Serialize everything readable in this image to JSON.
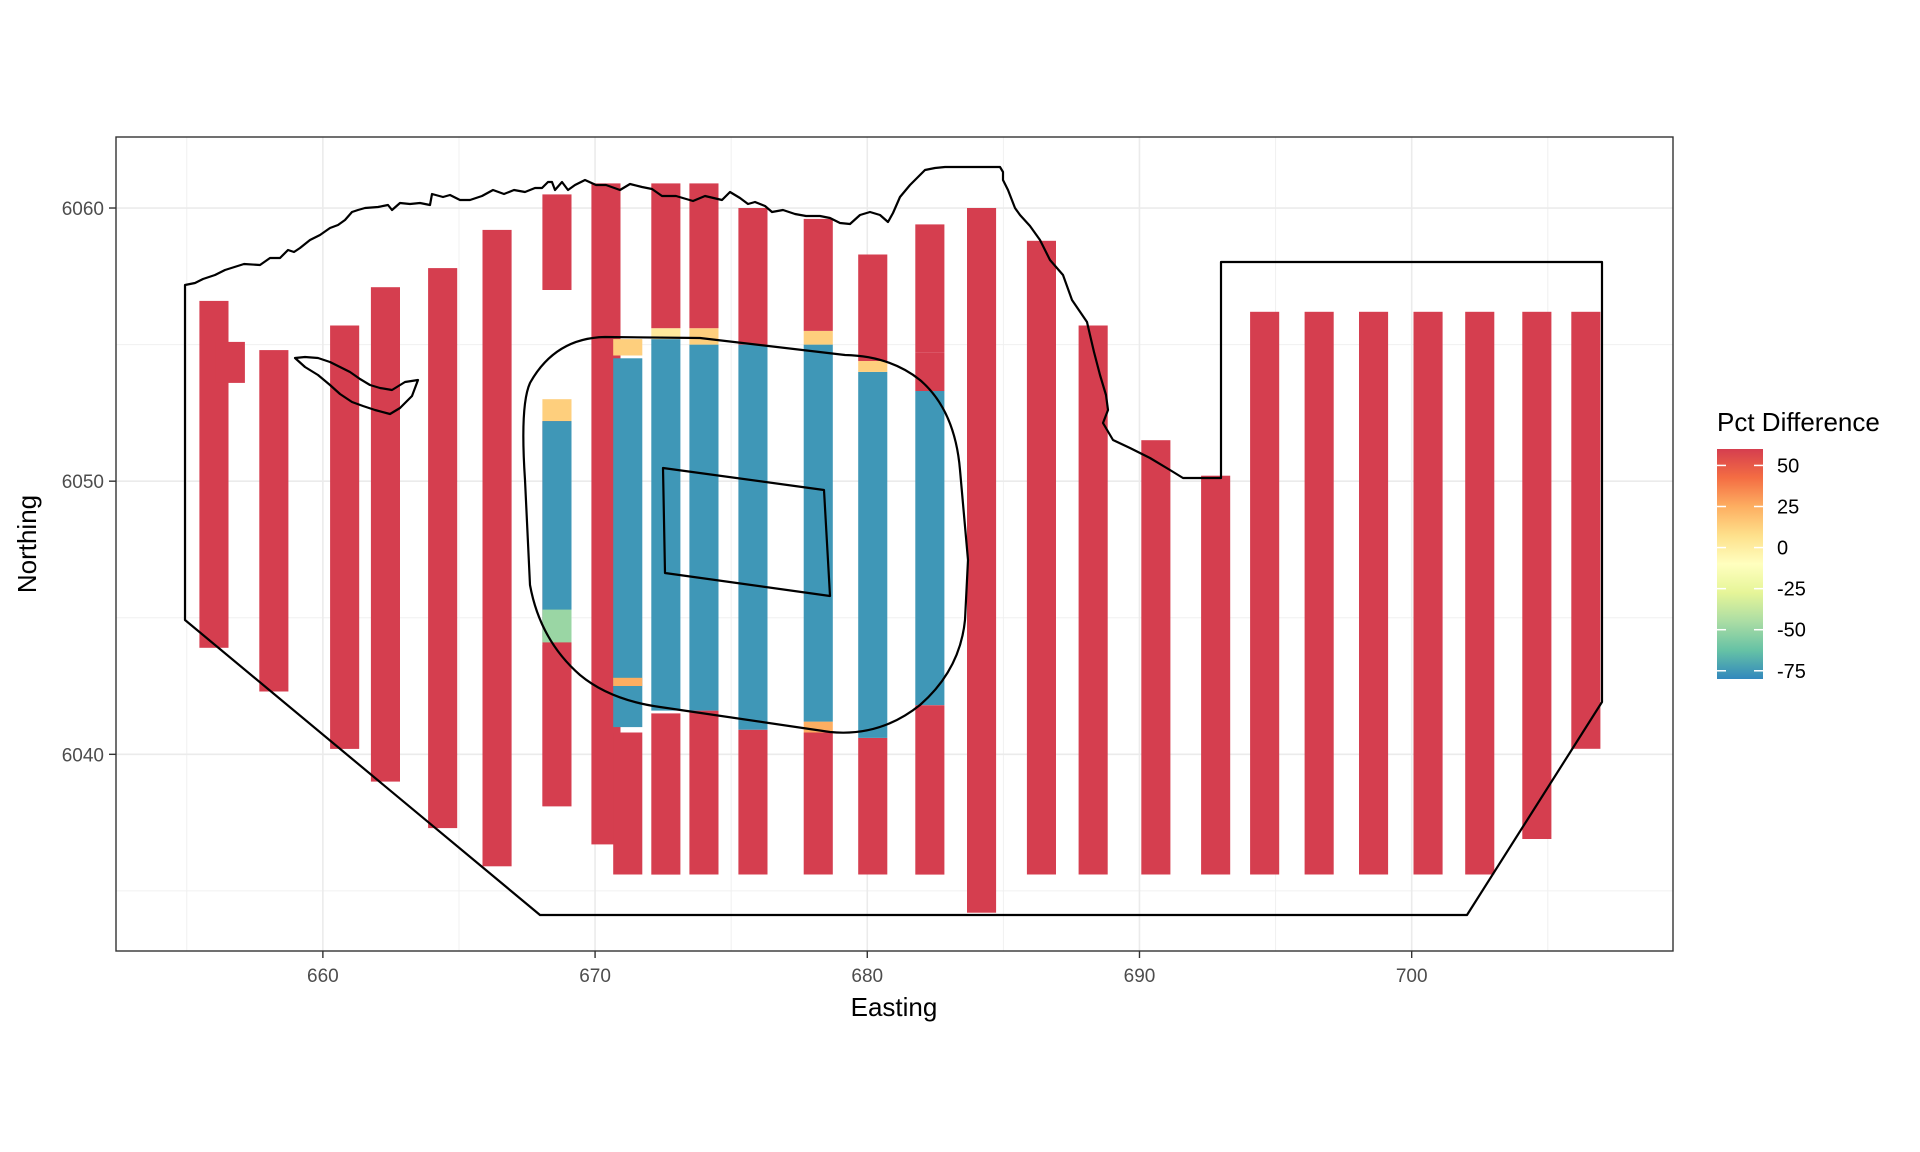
{
  "chart_data": {
    "type": "heatmap",
    "title": "",
    "xlabel": "Easting",
    "ylabel": "Northing",
    "xlim": [
      652.4,
      709.6
    ],
    "ylim": [
      6032.8,
      6062.6
    ],
    "x_ticks": [
      660,
      670,
      680,
      690,
      700
    ],
    "y_ticks": [
      6040,
      6050,
      6060
    ],
    "grid": true,
    "legend": {
      "title": "Pct Difference",
      "position": "right",
      "breaks": [
        50,
        25,
        0,
        -25,
        -50,
        -75
      ],
      "range": [
        -80,
        60
      ],
      "colorscale": [
        "#3288BD",
        "#66C2A5",
        "#ABDDA4",
        "#E6F598",
        "#FFFFBF",
        "#FEE08B",
        "#FDAE61",
        "#F46D43",
        "#D53E4F"
      ]
    },
    "cell_size": [
      1.07,
      0.53
    ],
    "colors": {
      "high": "#D53E4F",
      "low": "#3288BD",
      "edge_pos": "#FEE08B",
      "edge_neg": "#ABDDA4"
    },
    "columns": [
      {
        "x": 656,
        "segments": [
          [
            6043.9,
            6056.6,
            60
          ]
        ]
      },
      {
        "x": 656.6,
        "segments": [
          [
            6053.6,
            6055.1,
            60
          ]
        ]
      },
      {
        "x": 658.2,
        "segments": [
          [
            6042.3,
            6054.8,
            60
          ]
        ]
      },
      {
        "x": 660.8,
        "segments": [
          [
            6040.2,
            6055.7,
            60
          ]
        ]
      },
      {
        "x": 662.3,
        "segments": [
          [
            6039.0,
            6057.1,
            60
          ]
        ]
      },
      {
        "x": 664.4,
        "segments": [
          [
            6037.3,
            6057.8,
            60
          ]
        ]
      },
      {
        "x": 666.4,
        "segments": [
          [
            6035.9,
            6059.2,
            60
          ]
        ]
      },
      {
        "x": 668.6,
        "segments": [
          [
            6038.1,
            6052.2,
            60
          ],
          [
            6052.2,
            6053.0,
            20
          ],
          [
            6044.3,
            6052.2,
            -75
          ],
          [
            6044.1,
            6045.3,
            -45
          ],
          [
            6038.1,
            6044.0,
            60
          ],
          [
            6057.0,
            6060.5,
            60
          ]
        ]
      },
      {
        "x": 670.4,
        "segments": [
          [
            6036.7,
            6060.9,
            60
          ]
        ]
      },
      {
        "x": 671.2,
        "segments": [
          [
            6035.6,
            6040.8,
            60
          ],
          [
            6041.0,
            6054.5,
            -75
          ],
          [
            6042.8,
            6042.5,
            30
          ],
          [
            6054.6,
            6055.2,
            20
          ]
        ]
      },
      {
        "x": 672.6,
        "segments": [
          [
            6035.6,
            6041.5,
            60
          ],
          [
            6041.6,
            6055.2,
            -75
          ],
          [
            6055.2,
            6055.6,
            10
          ],
          [
            6055.6,
            6060.9,
            60
          ]
        ]
      },
      {
        "x": 674.0,
        "segments": [
          [
            6035.6,
            6041.6,
            60
          ],
          [
            6041.6,
            6055.0,
            -75
          ],
          [
            6055.0,
            6055.6,
            20
          ],
          [
            6055.6,
            6060.9,
            60
          ]
        ]
      },
      {
        "x": 675.8,
        "segments": [
          [
            6035.6,
            6040.9,
            60
          ],
          [
            6040.9,
            6055.0,
            -75
          ],
          [
            6055.0,
            6060.0,
            60
          ]
        ]
      },
      {
        "x": 678.2,
        "segments": [
          [
            6035.6,
            6040.8,
            60
          ],
          [
            6040.8,
            6041.2,
            30
          ],
          [
            6041.2,
            6055.0,
            -75
          ],
          [
            6055.0,
            6055.5,
            20
          ],
          [
            6055.5,
            6059.6,
            60
          ]
        ]
      },
      {
        "x": 680.2,
        "segments": [
          [
            6035.6,
            6040.6,
            60
          ],
          [
            6040.6,
            6054.0,
            -75
          ],
          [
            6054.0,
            6054.4,
            20
          ],
          [
            6054.4,
            6058.3,
            60
          ]
        ]
      },
      {
        "x": 682.3,
        "segments": [
          [
            6035.6,
            6041.8,
            60
          ],
          [
            6041.8,
            6053.3,
            -75
          ],
          [
            6053.3,
            6054.7,
            60
          ],
          [
            6054.7,
            6059.4,
            60
          ]
        ]
      },
      {
        "x": 684.2,
        "segments": [
          [
            6034.2,
            6060.0,
            60
          ]
        ]
      },
      {
        "x": 686.4,
        "segments": [
          [
            6035.6,
            6058.8,
            60
          ]
        ]
      },
      {
        "x": 688.3,
        "segments": [
          [
            6035.6,
            6055.7,
            60
          ]
        ]
      },
      {
        "x": 690.6,
        "segments": [
          [
            6035.6,
            6051.5,
            60
          ]
        ]
      },
      {
        "x": 692.8,
        "segments": [
          [
            6035.6,
            6050.2,
            60
          ]
        ]
      },
      {
        "x": 694.6,
        "segments": [
          [
            6035.6,
            6056.2,
            60
          ]
        ]
      },
      {
        "x": 696.6,
        "segments": [
          [
            6035.6,
            6056.2,
            60
          ]
        ]
      },
      {
        "x": 698.6,
        "segments": [
          [
            6035.6,
            6056.2,
            60
          ]
        ]
      },
      {
        "x": 700.6,
        "segments": [
          [
            6035.6,
            6056.2,
            60
          ]
        ]
      },
      {
        "x": 702.5,
        "segments": [
          [
            6035.6,
            6056.2,
            60
          ]
        ]
      },
      {
        "x": 704.6,
        "segments": [
          [
            6036.9,
            6056.2,
            60
          ]
        ]
      },
      {
        "x": 706.4,
        "segments": [
          [
            6040.2,
            6056.2,
            60
          ]
        ]
      }
    ]
  }
}
